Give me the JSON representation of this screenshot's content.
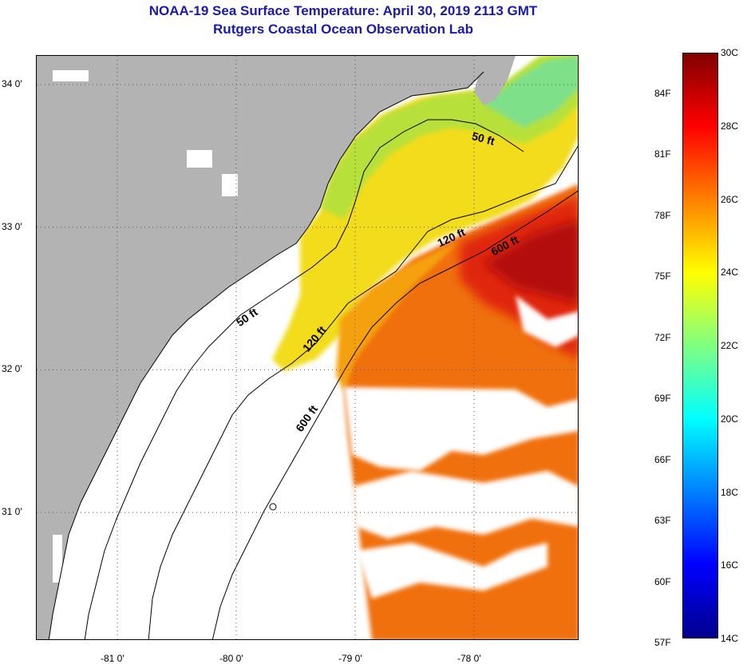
{
  "header": {
    "title": "NOAA-19 Sea Surface Temperature:  April 30, 2019 2113 GMT",
    "subtitle": "Rutgers Coastal Ocean Observation Lab"
  },
  "map": {
    "lat_ticks": [
      {
        "value": 34,
        "label": "34 0'"
      },
      {
        "value": 33,
        "label": "33 0'"
      },
      {
        "value": 32,
        "label": "32 0'"
      },
      {
        "value": 31,
        "label": "31 0'"
      }
    ],
    "lon_ticks": [
      {
        "value": -81,
        "label": "-81 0'"
      },
      {
        "value": -80,
        "label": "-80 0'"
      },
      {
        "value": -79,
        "label": "-79 0'"
      },
      {
        "value": -78,
        "label": "-78 0'"
      }
    ],
    "contour_labels": [
      {
        "id": "50ft-north",
        "text": "50 ft"
      },
      {
        "id": "120ft-north",
        "text": "120 ft"
      },
      {
        "id": "600ft-north",
        "text": "600 ft"
      },
      {
        "id": "50ft-south",
        "text": "50 ft"
      },
      {
        "id": "120ft-south",
        "text": "120 ft"
      },
      {
        "id": "600ft-south",
        "text": "600 ft"
      }
    ],
    "colors": {
      "land": "#b3b3b3",
      "no_data": "#ffffff",
      "contour": "#000000"
    }
  },
  "colorbar": {
    "celsius": [
      {
        "value": 30,
        "label": "30C"
      },
      {
        "value": 28,
        "label": "28C"
      },
      {
        "value": 26,
        "label": "26C"
      },
      {
        "value": 24,
        "label": "24C"
      },
      {
        "value": 22,
        "label": "22C"
      },
      {
        "value": 20,
        "label": "20C"
      },
      {
        "value": 18,
        "label": "18C"
      },
      {
        "value": 16,
        "label": "16C"
      },
      {
        "value": 14,
        "label": "14C"
      }
    ],
    "fahrenheit": [
      {
        "value": 84,
        "label": "84F"
      },
      {
        "value": 81,
        "label": "81F"
      },
      {
        "value": 78,
        "label": "78F"
      },
      {
        "value": 75,
        "label": "75F"
      },
      {
        "value": 72,
        "label": "72F"
      },
      {
        "value": 69,
        "label": "69F"
      },
      {
        "value": 66,
        "label": "66F"
      },
      {
        "value": 63,
        "label": "63F"
      },
      {
        "value": 60,
        "label": "60F"
      },
      {
        "value": 57,
        "label": "57F"
      }
    ],
    "range_c": [
      14,
      30
    ],
    "stops": [
      "#00008f",
      "#0000ff",
      "#0080ff",
      "#00ffff",
      "#80ff80",
      "#ffff00",
      "#ff8000",
      "#ff0000",
      "#800000"
    ]
  }
}
